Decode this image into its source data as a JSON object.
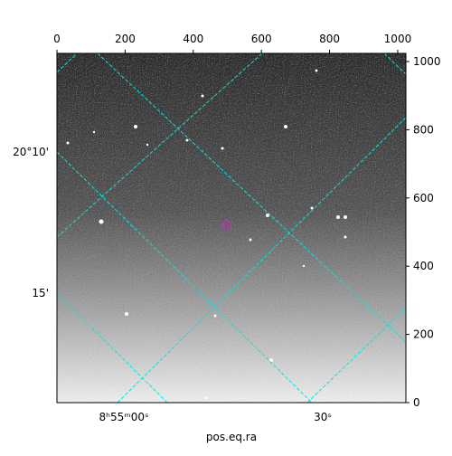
{
  "chart_data": {
    "type": "image",
    "xlabel": "pos.eq.ra",
    "xlim": [
      0,
      1024
    ],
    "ylim": [
      0,
      1024
    ],
    "xticks": [
      0,
      200,
      400,
      600,
      800,
      1000
    ],
    "yticks": [
      0,
      200,
      400,
      600,
      800,
      1000
    ],
    "dec_tick_labels": [
      "20°10'",
      "15'"
    ],
    "ra_tick_labels": [
      "8ʰ55ᵐ00ˢ",
      "30ˢ"
    ]
  }
}
